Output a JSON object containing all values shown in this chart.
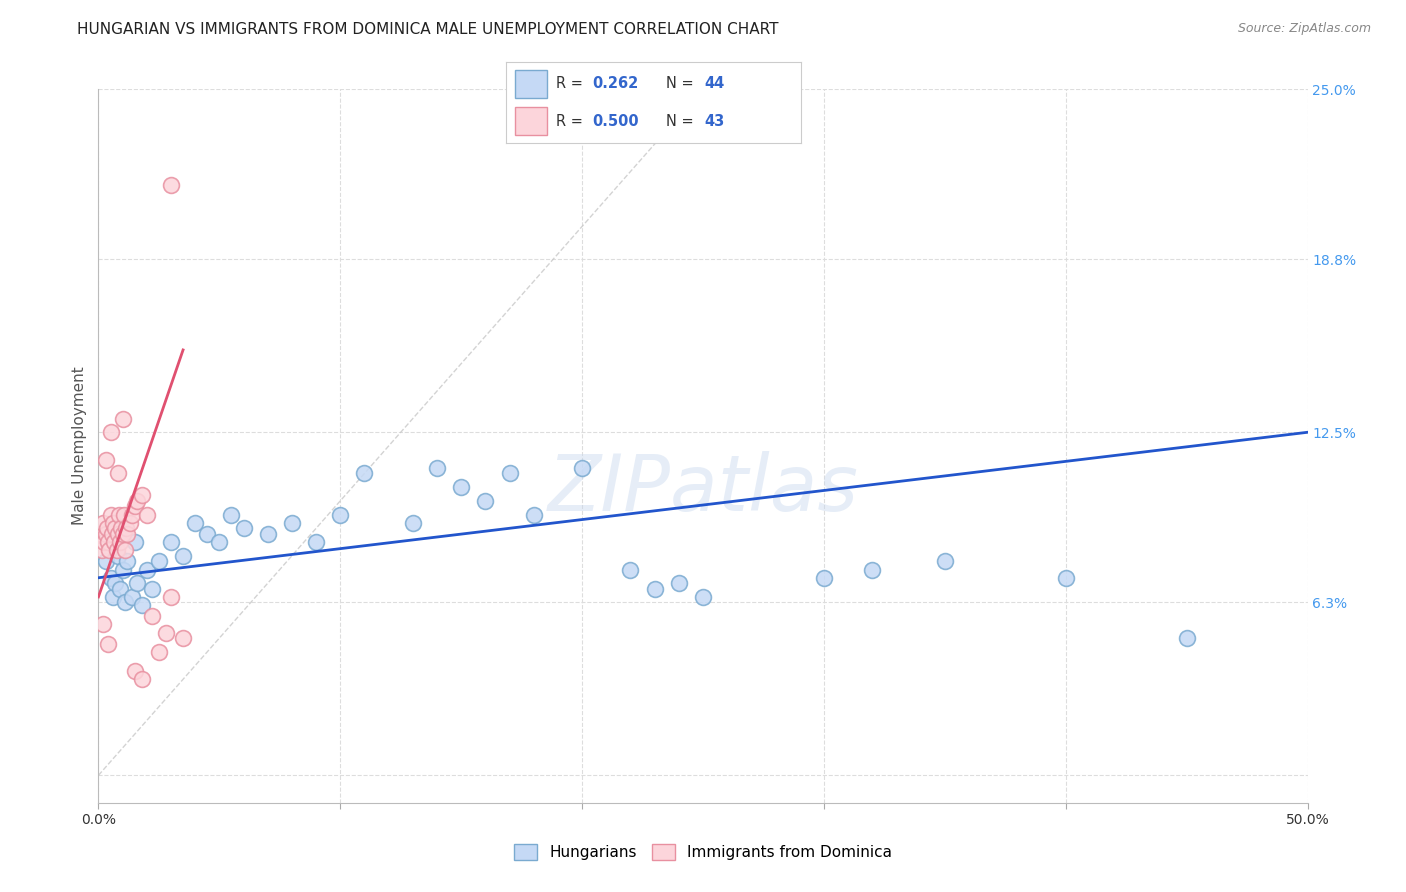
{
  "title": "HUNGARIAN VS IMMIGRANTS FROM DOMINICA MALE UNEMPLOYMENT CORRELATION CHART",
  "source": "Source: ZipAtlas.com",
  "xlabel_ticks": [
    0.0,
    10.0,
    20.0,
    30.0,
    40.0,
    50.0
  ],
  "xlabel_labels": [
    "0.0%",
    "",
    "",
    "",
    "",
    "50.0%"
  ],
  "ylabel_ticks": [
    0.0,
    6.3,
    12.5,
    18.8,
    25.0
  ],
  "ylabel_labels": [
    "",
    "6.3%",
    "12.5%",
    "18.8%",
    "25.0%"
  ],
  "ylabel_label": "Male Unemployment",
  "xmin": 0.0,
  "xmax": 50.0,
  "ymin": -1.0,
  "ymax": 25.0,
  "legend_blue_r": "0.262",
  "legend_blue_n": "44",
  "legend_pink_r": "0.500",
  "legend_pink_n": "43",
  "legend_blue_label": "Hungarians",
  "legend_pink_label": "Immigrants from Dominica",
  "blue_scatter": [
    [
      0.3,
      7.8
    ],
    [
      0.5,
      7.2
    ],
    [
      0.6,
      6.5
    ],
    [
      0.7,
      7.0
    ],
    [
      0.8,
      8.0
    ],
    [
      0.9,
      6.8
    ],
    [
      1.0,
      7.5
    ],
    [
      1.1,
      6.3
    ],
    [
      1.2,
      7.8
    ],
    [
      1.4,
      6.5
    ],
    [
      1.5,
      8.5
    ],
    [
      1.6,
      7.0
    ],
    [
      1.8,
      6.2
    ],
    [
      2.0,
      7.5
    ],
    [
      2.2,
      6.8
    ],
    [
      2.5,
      7.8
    ],
    [
      3.0,
      8.5
    ],
    [
      3.5,
      8.0
    ],
    [
      4.0,
      9.2
    ],
    [
      4.5,
      8.8
    ],
    [
      5.0,
      8.5
    ],
    [
      5.5,
      9.5
    ],
    [
      6.0,
      9.0
    ],
    [
      7.0,
      8.8
    ],
    [
      8.0,
      9.2
    ],
    [
      9.0,
      8.5
    ],
    [
      10.0,
      9.5
    ],
    [
      11.0,
      11.0
    ],
    [
      13.0,
      9.2
    ],
    [
      14.0,
      11.2
    ],
    [
      15.0,
      10.5
    ],
    [
      16.0,
      10.0
    ],
    [
      17.0,
      11.0
    ],
    [
      18.0,
      9.5
    ],
    [
      20.0,
      11.2
    ],
    [
      22.0,
      7.5
    ],
    [
      23.0,
      6.8
    ],
    [
      24.0,
      7.0
    ],
    [
      25.0,
      6.5
    ],
    [
      30.0,
      7.2
    ],
    [
      32.0,
      7.5
    ],
    [
      35.0,
      7.8
    ],
    [
      40.0,
      7.2
    ],
    [
      45.0,
      5.0
    ]
  ],
  "pink_scatter": [
    [
      0.1,
      8.8
    ],
    [
      0.15,
      8.2
    ],
    [
      0.2,
      9.2
    ],
    [
      0.25,
      8.5
    ],
    [
      0.3,
      8.8
    ],
    [
      0.35,
      9.0
    ],
    [
      0.4,
      8.5
    ],
    [
      0.45,
      8.2
    ],
    [
      0.5,
      9.5
    ],
    [
      0.55,
      8.8
    ],
    [
      0.6,
      9.2
    ],
    [
      0.65,
      8.5
    ],
    [
      0.7,
      9.0
    ],
    [
      0.75,
      8.2
    ],
    [
      0.8,
      8.8
    ],
    [
      0.85,
      9.5
    ],
    [
      0.9,
      8.5
    ],
    [
      0.95,
      9.0
    ],
    [
      1.0,
      8.8
    ],
    [
      1.05,
      9.5
    ],
    [
      1.1,
      8.2
    ],
    [
      1.15,
      9.0
    ],
    [
      1.2,
      8.8
    ],
    [
      1.3,
      9.2
    ],
    [
      1.4,
      9.5
    ],
    [
      1.5,
      9.8
    ],
    [
      1.6,
      10.0
    ],
    [
      1.8,
      10.2
    ],
    [
      2.0,
      9.5
    ],
    [
      2.2,
      5.8
    ],
    [
      2.5,
      4.5
    ],
    [
      2.8,
      5.2
    ],
    [
      3.0,
      6.5
    ],
    [
      3.5,
      5.0
    ],
    [
      0.5,
      12.5
    ],
    [
      1.0,
      13.0
    ],
    [
      0.3,
      11.5
    ],
    [
      0.8,
      11.0
    ],
    [
      0.2,
      5.5
    ],
    [
      0.4,
      4.8
    ],
    [
      1.5,
      3.8
    ],
    [
      1.8,
      3.5
    ],
    [
      3.0,
      21.5
    ]
  ],
  "blue_line": [
    [
      0.0,
      7.2
    ],
    [
      50.0,
      12.5
    ]
  ],
  "pink_line": [
    [
      0.0,
      6.5
    ],
    [
      3.5,
      15.5
    ]
  ],
  "diag_line": [
    [
      0.0,
      0.0
    ],
    [
      25.0,
      25.0
    ]
  ],
  "blue_color": "#8BBDE8",
  "pink_color": "#F4A0B0",
  "blue_fill_color": "#C5D9F5",
  "pink_fill_color": "#FCD5DB",
  "blue_edge_color": "#7AAAD0",
  "pink_edge_color": "#E890A0",
  "blue_line_color": "#2255CC",
  "pink_line_color": "#E05070",
  "diag_line_color": "#C8C8C8",
  "grid_color": "#DDDDDD",
  "title_color": "#222222",
  "axis_label_color": "#555555",
  "right_tick_color": "#4499EE",
  "bottom_tick_color": "#333333",
  "watermark_text": "ZIPatlas",
  "title_fontsize": 11,
  "source_fontsize": 9,
  "tick_fontsize": 10
}
